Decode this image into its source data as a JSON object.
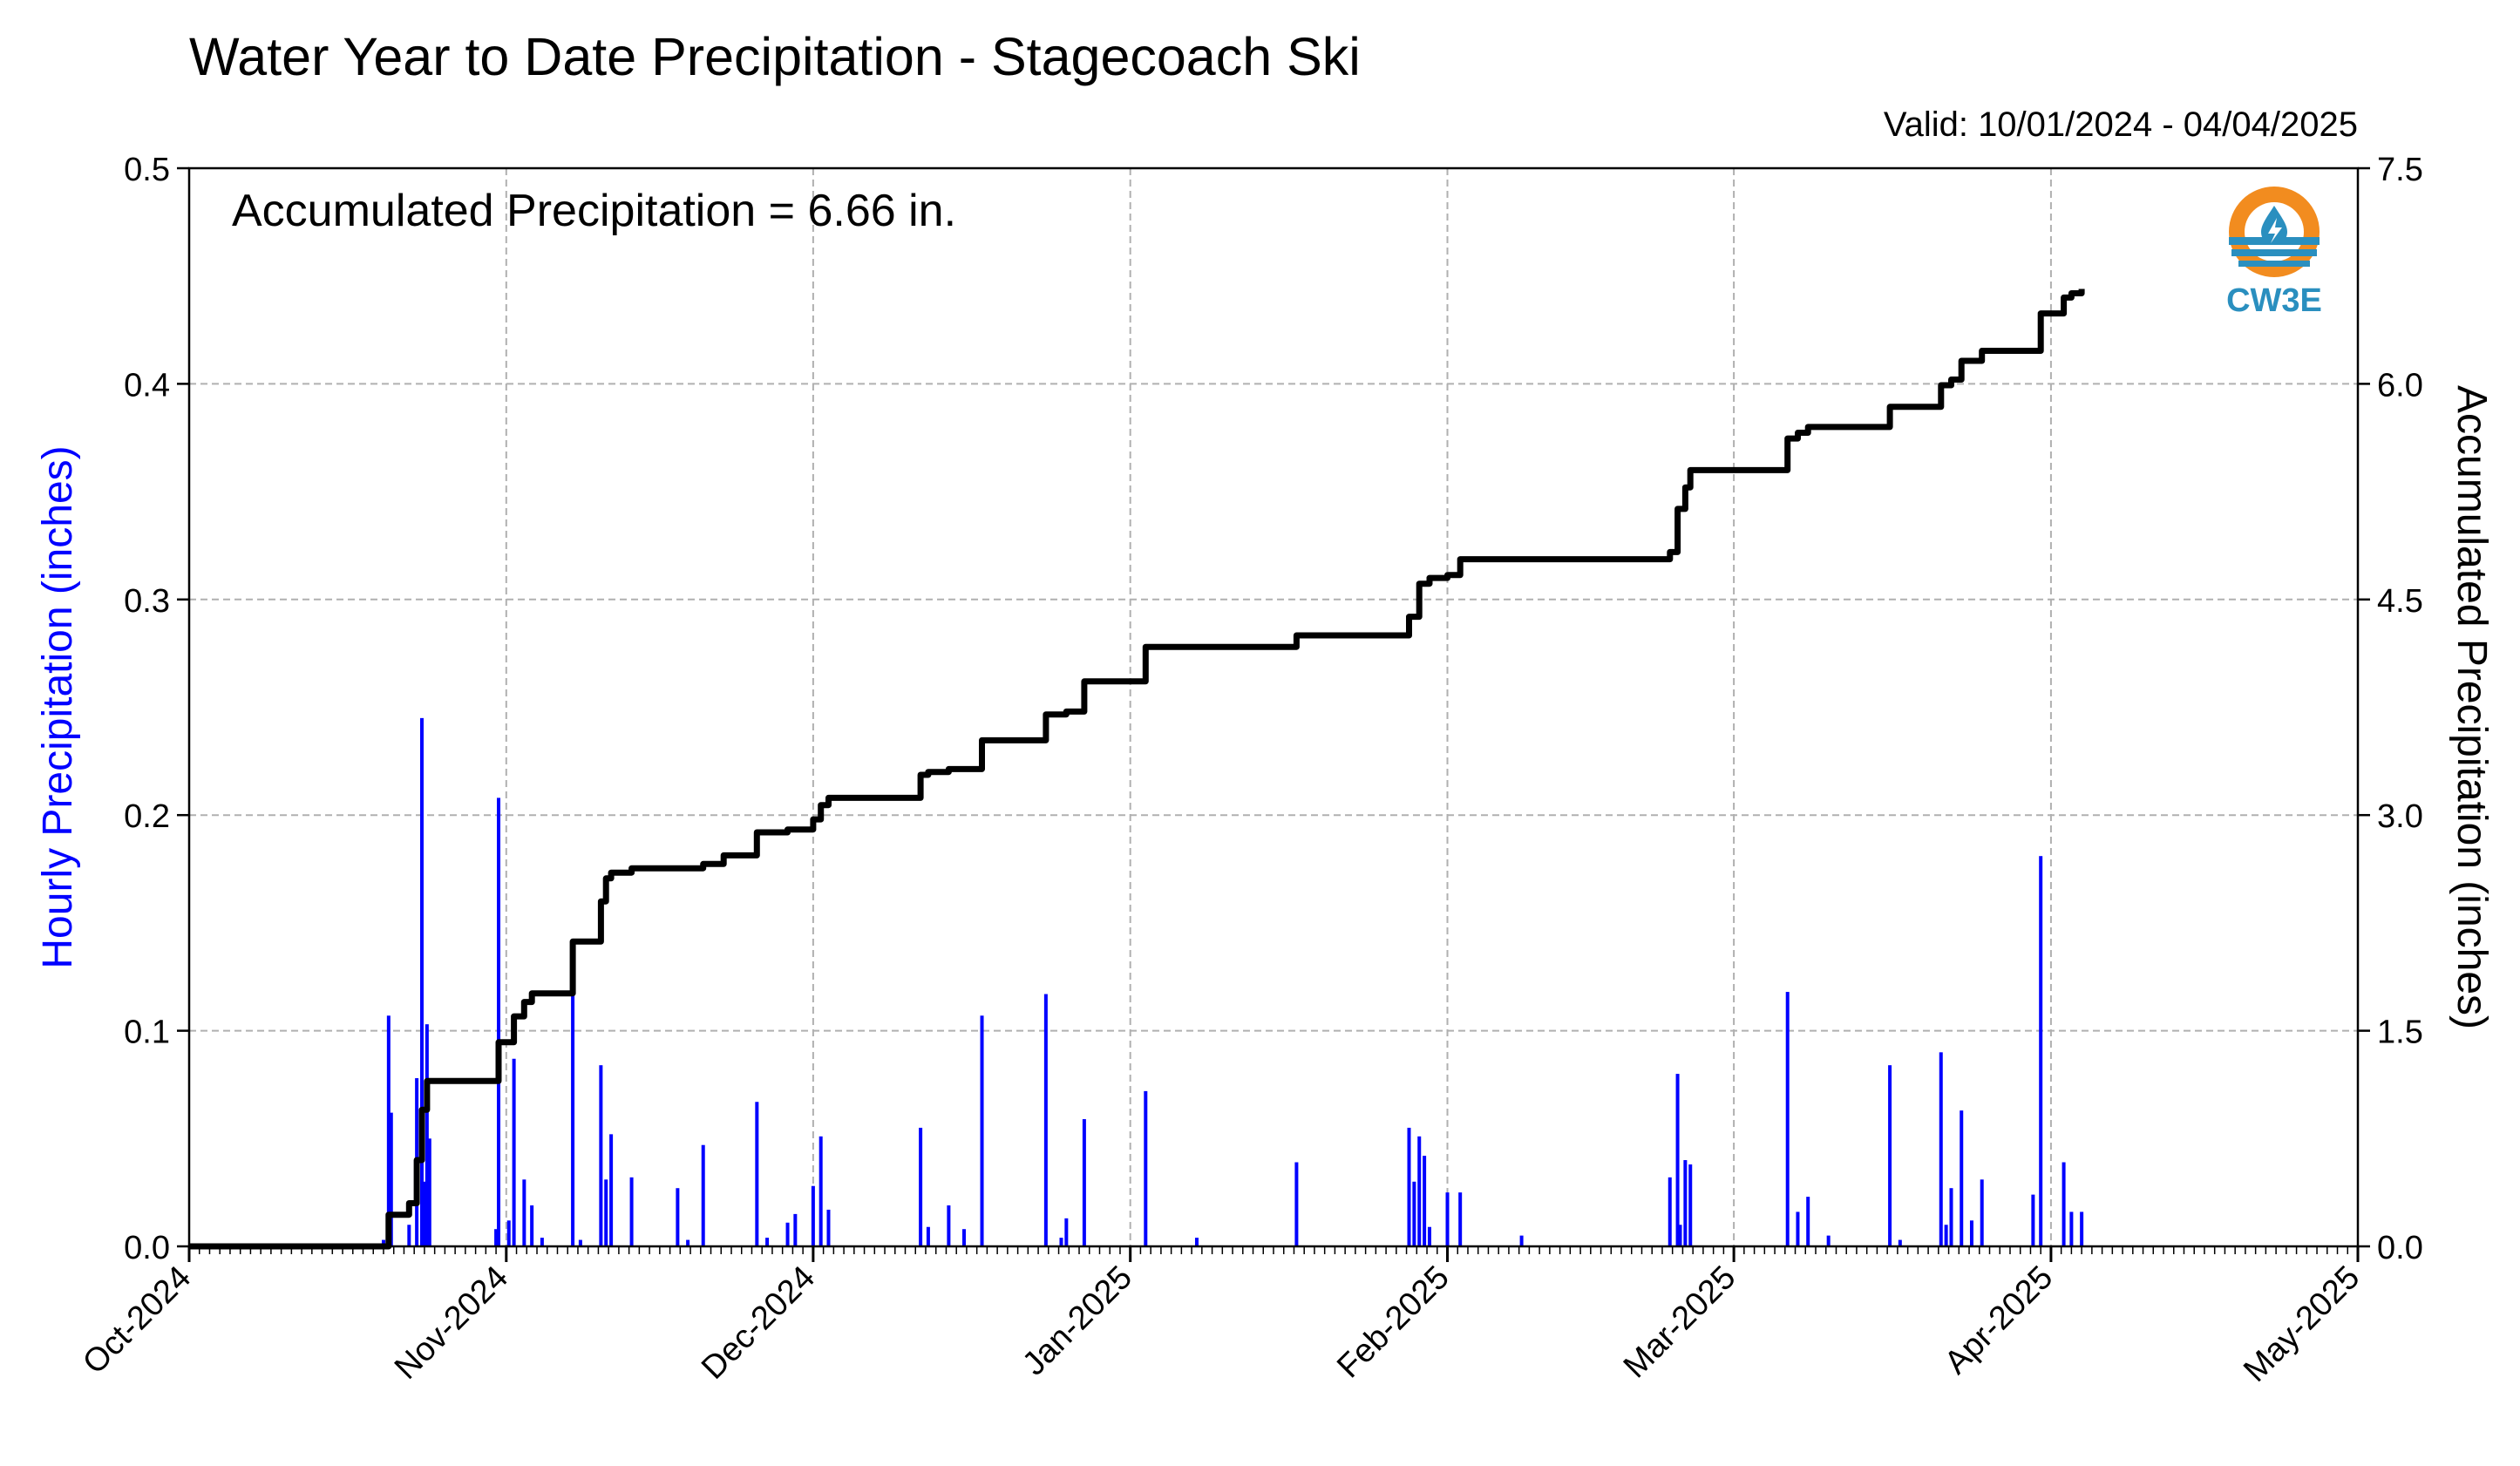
{
  "header": {
    "title": "Water Year to Date Precipitation - Stagecoach Ski",
    "valid": "Valid: 10/01/2024 - 04/04/2025"
  },
  "annotation": "Accumulated Precipitation = 6.66 in.",
  "logo": {
    "text": "CW3E",
    "colors": [
      "#f28c1f",
      "#2a8fbf"
    ]
  },
  "chart_data": {
    "type": "bar",
    "ylabel": "Hourly Precipitation (inches)",
    "ylabel_right": "Accumulated Precipitation (inches)",
    "ylim": [
      0,
      0.5
    ],
    "ylim_right": [
      0,
      7.5
    ],
    "yticks": [
      "0.0",
      "0.1",
      "0.2",
      "0.3",
      "0.4",
      "0.5"
    ],
    "yticks_right": [
      "0.0",
      "1.5",
      "3.0",
      "4.5",
      "6.0",
      "7.5"
    ],
    "x_range": [
      "2024-10-01",
      "2025-05-01"
    ],
    "xticks": [
      "Oct-2024",
      "Nov-2024",
      "Dec-2024",
      "Jan-2025",
      "Feb-2025",
      "Mar-2025",
      "Apr-2025",
      "May-2025"
    ],
    "grid": true,
    "colors": {
      "hourly": "#0000ff",
      "accumulated": "#000000",
      "grid": "#b0b0b0"
    },
    "series": [
      {
        "type": "bar",
        "axis": "left",
        "points": [
          [
            "2024-10-20T00",
            0.003
          ],
          [
            "2024-10-20T12",
            0.107
          ],
          [
            "2024-10-20T18",
            0.062
          ],
          [
            "2024-10-22T12",
            0.01
          ],
          [
            "2024-10-23T06",
            0.078
          ],
          [
            "2024-10-23T18",
            0.245
          ],
          [
            "2024-10-24T00",
            0.03
          ],
          [
            "2024-10-24T06",
            0.103
          ],
          [
            "2024-10-24T12",
            0.05
          ],
          [
            "2024-10-31T00",
            0.008
          ],
          [
            "2024-10-31T06",
            0.208
          ],
          [
            "2024-11-01T06",
            0.012
          ],
          [
            "2024-11-01T18",
            0.087
          ],
          [
            "2024-11-02T18",
            0.031
          ],
          [
            "2024-11-03T12",
            0.019
          ],
          [
            "2024-11-04T12",
            0.004
          ],
          [
            "2024-11-07T12",
            0.122
          ],
          [
            "2024-11-08T06",
            0.003
          ],
          [
            "2024-11-10T06",
            0.084
          ],
          [
            "2024-11-10T18",
            0.031
          ],
          [
            "2024-11-11T06",
            0.052
          ],
          [
            "2024-11-13T06",
            0.032
          ],
          [
            "2024-11-17T18",
            0.027
          ],
          [
            "2024-11-18T18",
            0.003
          ],
          [
            "2024-11-20T06",
            0.047
          ],
          [
            "2024-11-25T12",
            0.067
          ],
          [
            "2024-11-26T12",
            0.004
          ],
          [
            "2024-11-28T12",
            0.011
          ],
          [
            "2024-11-29T06",
            0.015
          ],
          [
            "2024-12-01T00",
            0.028
          ],
          [
            "2024-12-01T18",
            0.051
          ],
          [
            "2024-12-02T12",
            0.017
          ],
          [
            "2024-12-11T12",
            0.055
          ],
          [
            "2024-12-12T06",
            0.009
          ],
          [
            "2024-12-14T06",
            0.019
          ],
          [
            "2024-12-15T18",
            0.008
          ],
          [
            "2024-12-17T12",
            0.107
          ],
          [
            "2024-12-23T18",
            0.117
          ],
          [
            "2024-12-25T06",
            0.004
          ],
          [
            "2024-12-25T18",
            0.013
          ],
          [
            "2024-12-27T12",
            0.059
          ],
          [
            "2025-01-02T12",
            0.072
          ],
          [
            "2025-01-07T12",
            0.004
          ],
          [
            "2025-01-17T06",
            0.039
          ],
          [
            "2025-01-28T06",
            0.055
          ],
          [
            "2025-01-28T18",
            0.03
          ],
          [
            "2025-01-29T06",
            0.051
          ],
          [
            "2025-01-29T18",
            0.042
          ],
          [
            "2025-01-30T06",
            0.009
          ],
          [
            "2025-02-01T00",
            0.025
          ],
          [
            "2025-02-02T06",
            0.025
          ],
          [
            "2025-02-08T06",
            0.005
          ],
          [
            "2025-02-22T18",
            0.032
          ],
          [
            "2025-02-23T12",
            0.08
          ],
          [
            "2025-02-23T18",
            0.01
          ],
          [
            "2025-02-24T06",
            0.04
          ],
          [
            "2025-02-24T18",
            0.038
          ],
          [
            "2025-03-06T06",
            0.118
          ],
          [
            "2025-03-07T06",
            0.016
          ],
          [
            "2025-03-08T06",
            0.023
          ],
          [
            "2025-03-10T06",
            0.005
          ],
          [
            "2025-03-16T06",
            0.084
          ],
          [
            "2025-03-17T06",
            0.003
          ],
          [
            "2025-03-21T06",
            0.09
          ],
          [
            "2025-03-21T18",
            0.01
          ],
          [
            "2025-03-22T06",
            0.027
          ],
          [
            "2025-03-23T06",
            0.063
          ],
          [
            "2025-03-24T06",
            0.012
          ],
          [
            "2025-03-25T06",
            0.031
          ],
          [
            "2025-03-30T06",
            0.024
          ],
          [
            "2025-03-31T00",
            0.181
          ],
          [
            "2025-04-02T06",
            0.039
          ],
          [
            "2025-04-03T00",
            0.016
          ],
          [
            "2025-04-04T00",
            0.016
          ]
        ]
      },
      {
        "type": "step-line",
        "axis": "right",
        "points": [
          [
            "2024-10-01T00",
            0.0
          ],
          [
            "2024-10-20T00",
            0.0
          ],
          [
            "2024-10-20T12",
            0.22
          ],
          [
            "2024-10-22T12",
            0.3
          ],
          [
            "2024-10-23T06",
            0.6
          ],
          [
            "2024-10-23T18",
            0.95
          ],
          [
            "2024-10-24T06",
            1.15
          ],
          [
            "2024-10-31T00",
            1.15
          ],
          [
            "2024-10-31T06",
            1.42
          ],
          [
            "2024-11-01T18",
            1.6
          ],
          [
            "2024-11-02T18",
            1.7
          ],
          [
            "2024-11-03T12",
            1.76
          ],
          [
            "2024-11-07T12",
            2.12
          ],
          [
            "2024-11-10T06",
            2.4
          ],
          [
            "2024-11-10T18",
            2.56
          ],
          [
            "2024-11-11T06",
            2.6
          ],
          [
            "2024-11-13T06",
            2.63
          ],
          [
            "2024-11-20T06",
            2.66
          ],
          [
            "2024-11-22T06",
            2.72
          ],
          [
            "2024-11-25T12",
            2.88
          ],
          [
            "2024-11-28T12",
            2.9
          ],
          [
            "2024-12-01T00",
            2.97
          ],
          [
            "2024-12-01T18",
            3.07
          ],
          [
            "2024-12-02T12",
            3.12
          ],
          [
            "2024-12-11T12",
            3.28
          ],
          [
            "2024-12-12T06",
            3.3
          ],
          [
            "2024-12-14T06",
            3.32
          ],
          [
            "2024-12-17T12",
            3.52
          ],
          [
            "2024-12-23T18",
            3.7
          ],
          [
            "2024-12-25T18",
            3.72
          ],
          [
            "2024-12-27T12",
            3.93
          ],
          [
            "2025-01-02T12",
            4.17
          ],
          [
            "2025-01-17T06",
            4.25
          ],
          [
            "2025-01-28T06",
            4.38
          ],
          [
            "2025-01-29T06",
            4.61
          ],
          [
            "2025-01-30T06",
            4.65
          ],
          [
            "2025-02-01T00",
            4.67
          ],
          [
            "2025-02-02T06",
            4.78
          ],
          [
            "2025-02-22T18",
            4.83
          ],
          [
            "2025-02-23T12",
            5.13
          ],
          [
            "2025-02-24T06",
            5.28
          ],
          [
            "2025-02-24T18",
            5.4
          ],
          [
            "2025-03-06T06",
            5.62
          ],
          [
            "2025-03-07T06",
            5.66
          ],
          [
            "2025-03-08T06",
            5.7
          ],
          [
            "2025-03-16T06",
            5.84
          ],
          [
            "2025-03-21T06",
            5.99
          ],
          [
            "2025-03-22T06",
            6.03
          ],
          [
            "2025-03-23T06",
            6.16
          ],
          [
            "2025-03-25T06",
            6.23
          ],
          [
            "2025-03-31T00",
            6.49
          ],
          [
            "2025-04-02T06",
            6.6
          ],
          [
            "2025-04-03T00",
            6.63
          ],
          [
            "2025-04-04T00",
            6.66
          ]
        ]
      }
    ]
  }
}
